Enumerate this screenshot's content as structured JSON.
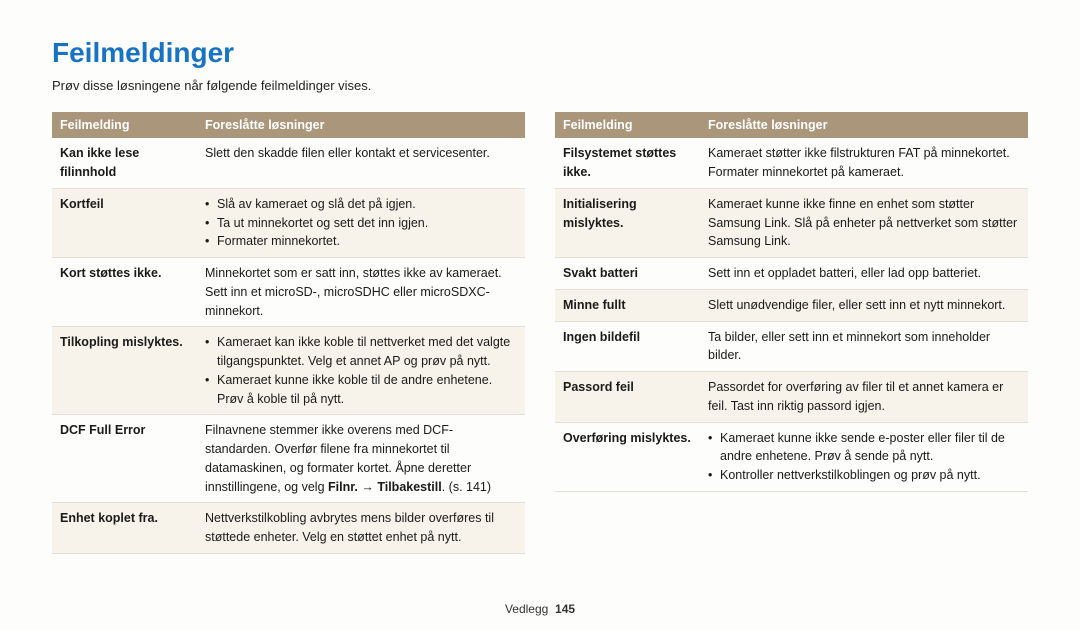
{
  "title": "Feilmeldinger",
  "subtitle": "Prøv disse løsningene når følgende feilmeldinger vises.",
  "headers": {
    "col1": "Feilmelding",
    "col2": "Foreslåtte løsninger"
  },
  "left": [
    {
      "label": "Kan ikke lese filinnhold",
      "text": "Slett den skadde filen eller kontakt et servicesenter."
    },
    {
      "label": "Kortfeil",
      "bullets": [
        "Slå av kameraet og slå det på igjen.",
        "Ta ut minnekortet og sett det inn igjen.",
        "Formater minnekortet."
      ]
    },
    {
      "label": "Kort støttes ikke.",
      "text": "Minnekortet som er satt inn, støttes ikke av kameraet. Sett inn et microSD-, microSDHC eller microSDXC-minnekort."
    },
    {
      "label": "Tilkopling mislyktes.",
      "bullets": [
        "Kameraet kan ikke koble til nettverket med det valgte tilgangspunktet. Velg et annet AP og prøv på nytt.",
        "Kameraet kunne ikke koble til de andre enhetene. Prøv å koble til på nytt."
      ]
    },
    {
      "label": "DCF Full Error",
      "html": "Filnavnene stemmer ikke overens med DCF-standarden. Overfør filene fra minnekortet til datamaskinen, og formater kortet. Åpne deretter innstillingene, og velg <span class=\"bold\">Filnr.</span> → <span class=\"bold\">Tilbakestill</span>. (s. 141)"
    },
    {
      "label": "Enhet koplet fra.",
      "text": "Nettverkstilkobling avbrytes mens bilder overføres til støttede enheter. Velg en støttet enhet på nytt."
    }
  ],
  "right": [
    {
      "label": "Filsystemet støttes ikke.",
      "text": "Kameraet støtter ikke filstrukturen FAT på minnekortet. Formater minnekortet på kameraet."
    },
    {
      "label": "Initialisering mislyktes.",
      "text": "Kameraet kunne ikke finne en enhet som støtter Samsung Link. Slå på enheter på nettverket som støtter Samsung Link."
    },
    {
      "label": "Svakt batteri",
      "text": "Sett inn et oppladet batteri, eller lad opp batteriet."
    },
    {
      "label": "Minne fullt",
      "text": "Slett unødvendige filer, eller sett inn et nytt minnekort."
    },
    {
      "label": "Ingen bildefil",
      "text": "Ta bilder, eller sett inn et minnekort som inneholder bilder."
    },
    {
      "label": "Passord feil",
      "text": "Passordet for overføring av filer til et annet kamera er feil. Tast inn riktig passord igjen."
    },
    {
      "label": "Overføring mislyktes.",
      "bullets": [
        "Kameraet kunne ikke sende e-poster eller filer til de andre enhetene. Prøv å sende på nytt.",
        "Kontroller nettverkstilkoblingen og prøv på nytt."
      ]
    }
  ],
  "footer": {
    "section": "Vedlegg",
    "page": "145"
  }
}
